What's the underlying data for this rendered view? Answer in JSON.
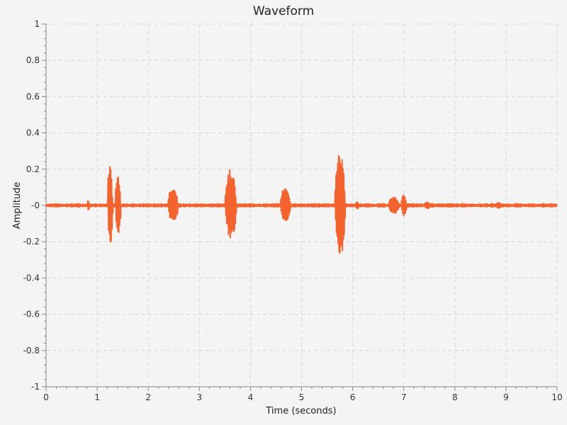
{
  "chart_data": {
    "type": "line",
    "title": "Waveform",
    "xlabel": "Time (seconds)",
    "ylabel": "Amplitude",
    "xlim": [
      0,
      10
    ],
    "ylim": [
      -1,
      1
    ],
    "x_ticks": [
      0,
      1,
      2,
      3,
      4,
      5,
      6,
      7,
      8,
      9,
      10
    ],
    "x_tick_labels": [
      "0",
      "1",
      "2",
      "3",
      "4",
      "5",
      "6",
      "7",
      "8",
      "9",
      "10"
    ],
    "y_ticks": [
      1,
      0.8,
      0.6,
      0.4,
      0.2,
      0,
      -0.2,
      -0.4,
      -0.6,
      -0.8,
      -1
    ],
    "y_tick_labels": [
      "1",
      "0.8",
      "0.6",
      "0.4",
      "0.2",
      "-0",
      "-0.2",
      "-0.4",
      "-0.6",
      "-0.8",
      "-1"
    ],
    "grid": true,
    "series": [
      {
        "color": "#f4622d",
        "noise_floor": 0.006,
        "bursts": [
          {
            "start": 0.8,
            "end": 0.84,
            "amp": 0.03
          },
          {
            "start": 1.2,
            "end": 1.3,
            "amp": 0.24
          },
          {
            "start": 1.35,
            "end": 1.46,
            "amp": 0.16
          },
          {
            "start": 2.38,
            "end": 2.58,
            "amp": 0.1
          },
          {
            "start": 3.5,
            "end": 3.72,
            "amp": 0.2
          },
          {
            "start": 4.58,
            "end": 4.78,
            "amp": 0.1
          },
          {
            "start": 5.65,
            "end": 5.85,
            "amp": 0.31
          },
          {
            "start": 6.05,
            "end": 6.12,
            "amp": 0.02
          },
          {
            "start": 6.7,
            "end": 6.9,
            "amp": 0.05
          },
          {
            "start": 6.95,
            "end": 7.05,
            "amp": 0.06
          },
          {
            "start": 7.4,
            "end": 7.5,
            "amp": 0.02
          },
          {
            "start": 8.8,
            "end": 8.9,
            "amp": 0.02
          }
        ]
      }
    ]
  }
}
